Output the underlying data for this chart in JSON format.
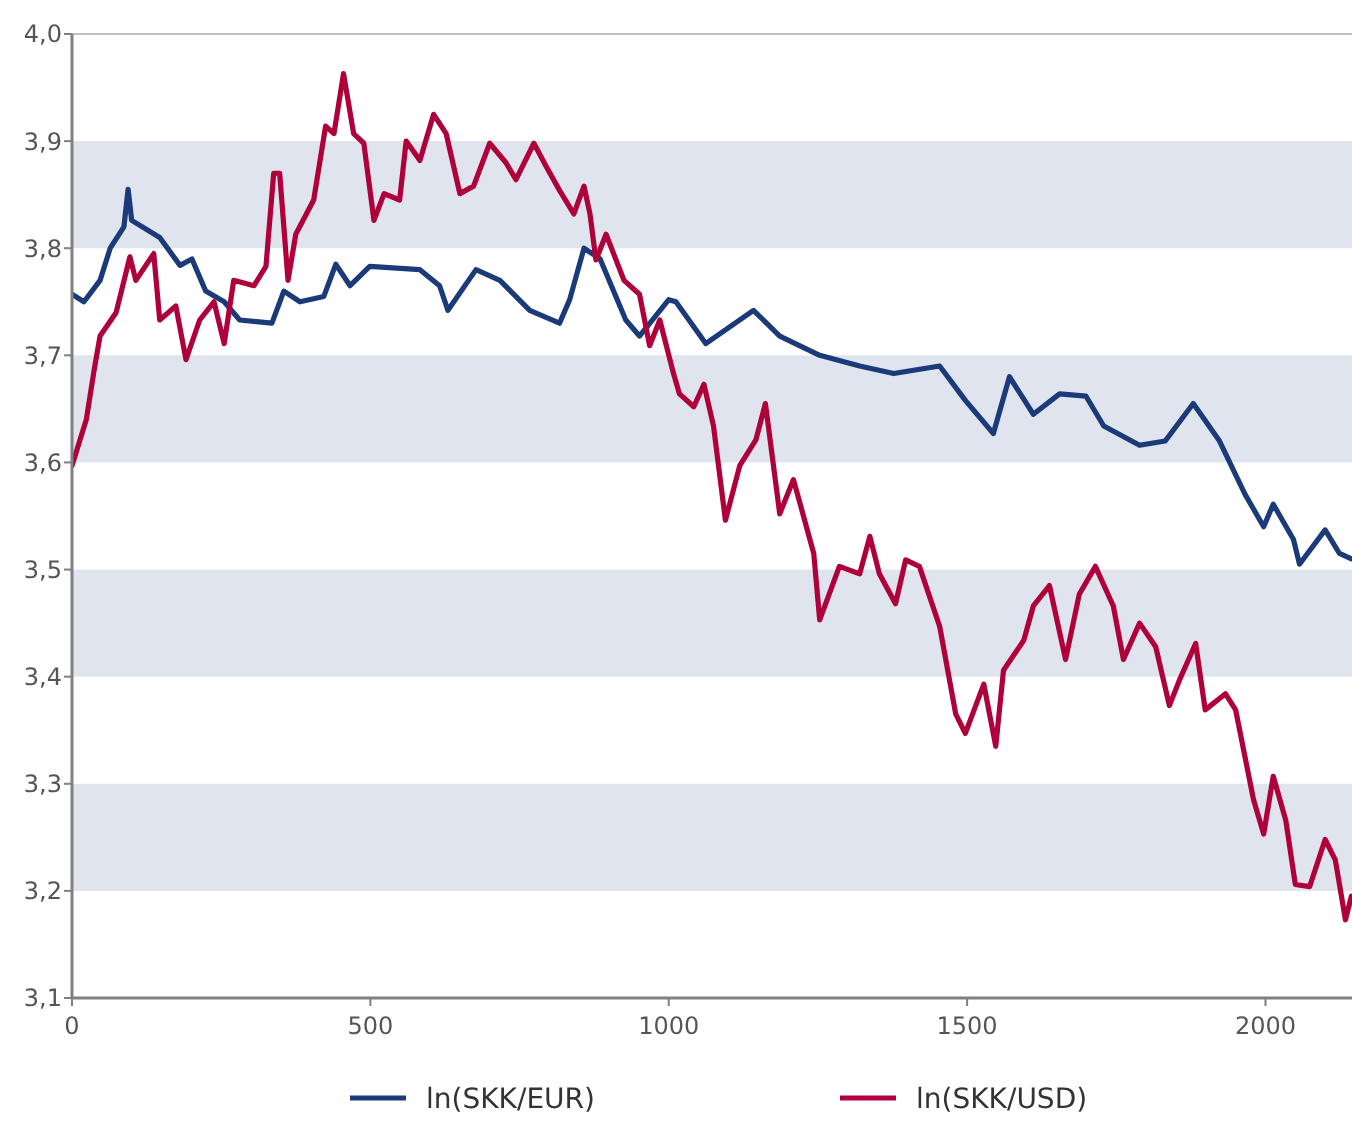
{
  "chart_data": {
    "type": "line",
    "xlim": [
      0,
      2145
    ],
    "ylim": [
      3.1,
      4.0
    ],
    "xticks": [
      0,
      500,
      1000,
      1500,
      2000
    ],
    "yticks": [
      {
        "value": 3.1,
        "label": "3,1"
      },
      {
        "value": 3.2,
        "label": "3,2"
      },
      {
        "value": 3.3,
        "label": "3,3"
      },
      {
        "value": 3.4,
        "label": "3,4"
      },
      {
        "value": 3.5,
        "label": "3,5"
      },
      {
        "value": 3.6,
        "label": "3,6"
      },
      {
        "value": 3.7,
        "label": "3,7"
      },
      {
        "value": 3.8,
        "label": "3,8"
      },
      {
        "value": 3.9,
        "label": "3,9"
      },
      {
        "value": 4.0,
        "label": "4,0"
      }
    ],
    "bands": [
      {
        "axis": "y",
        "from": 3.2,
        "to": 3.3,
        "color": "#dfe4ee"
      },
      {
        "axis": "y",
        "from": 3.4,
        "to": 3.5,
        "color": "#dfe4ee"
      },
      {
        "axis": "y",
        "from": 3.6,
        "to": 3.7,
        "color": "#dfe4ee"
      },
      {
        "axis": "y",
        "from": 3.8,
        "to": 3.9,
        "color": "#dfe4ee"
      }
    ],
    "legend": "bottom",
    "marker": "none",
    "line_style": "solid",
    "series": [
      {
        "name": "ln(SKK/EUR)",
        "color": "#1a3a7a",
        "x": [
          0,
          20,
          47,
          64,
          87,
          94,
          100,
          147,
          181,
          201,
          224,
          255,
          281,
          335,
          355,
          382,
          422,
          442,
          466,
          499,
          583,
          616,
          630,
          677,
          717,
          767,
          817,
          834,
          858,
          885,
          928,
          951,
          1000,
          1012,
          1062,
          1142,
          1186,
          1253,
          1320,
          1377,
          1454,
          1497,
          1544,
          1571,
          1611,
          1655,
          1699,
          1729,
          1789,
          1832,
          1879,
          1923,
          1966,
          1997,
          2013,
          2047,
          2057,
          2100,
          2124,
          2144
        ],
        "values": [
          3.757,
          3.75,
          3.77,
          3.8,
          3.82,
          3.855,
          3.826,
          3.81,
          3.784,
          3.79,
          3.76,
          3.75,
          3.733,
          3.73,
          3.76,
          3.75,
          3.755,
          3.785,
          3.765,
          3.783,
          3.78,
          3.765,
          3.742,
          3.78,
          3.77,
          3.742,
          3.73,
          3.752,
          3.8,
          3.79,
          3.733,
          3.718,
          3.752,
          3.75,
          3.711,
          3.742,
          3.718,
          3.7,
          3.69,
          3.683,
          3.69,
          3.658,
          3.627,
          3.68,
          3.645,
          3.664,
          3.662,
          3.634,
          3.616,
          3.62,
          3.655,
          3.62,
          3.57,
          3.54,
          3.561,
          3.528,
          3.505,
          3.537,
          3.515,
          3.51
        ]
      },
      {
        "name": "ln(SKK/USD)",
        "color": "#b0003a",
        "x": [
          0,
          24,
          37,
          47,
          74,
          97,
          107,
          137,
          147,
          174,
          191,
          214,
          238,
          255,
          271,
          305,
          325,
          338,
          348,
          362,
          375,
          405,
          425,
          439,
          455,
          472,
          489,
          506,
          523,
          549,
          560,
          583,
          606,
          627,
          650,
          673,
          700,
          727,
          744,
          774,
          794,
          817,
          841,
          858,
          868,
          878,
          895,
          925,
          951,
          968,
          985,
          1008,
          1018,
          1042,
          1059,
          1075,
          1095,
          1119,
          1146,
          1162,
          1186,
          1209,
          1243,
          1253,
          1286,
          1320,
          1337,
          1353,
          1380,
          1397,
          1420,
          1454,
          1481,
          1497,
          1528,
          1548,
          1561,
          1595,
          1611,
          1638,
          1665,
          1688,
          1715,
          1745,
          1762,
          1789,
          1816,
          1839,
          1856,
          1883,
          1899,
          1933,
          1950,
          1980,
          1997,
          2013,
          2034,
          2050,
          2074,
          2100,
          2117,
          2134,
          2144
        ],
        "values": [
          3.597,
          3.64,
          3.686,
          3.718,
          3.74,
          3.792,
          3.77,
          3.795,
          3.733,
          3.746,
          3.696,
          3.733,
          3.75,
          3.711,
          3.77,
          3.765,
          3.783,
          3.87,
          3.87,
          3.77,
          3.813,
          3.845,
          3.914,
          3.907,
          3.963,
          3.907,
          3.898,
          3.826,
          3.851,
          3.845,
          3.9,
          3.882,
          3.925,
          3.907,
          3.851,
          3.858,
          3.898,
          3.88,
          3.864,
          3.898,
          3.877,
          3.854,
          3.832,
          3.858,
          3.832,
          3.789,
          3.813,
          3.77,
          3.757,
          3.709,
          3.733,
          3.683,
          3.664,
          3.652,
          3.673,
          3.634,
          3.546,
          3.597,
          3.621,
          3.655,
          3.552,
          3.584,
          3.515,
          3.453,
          3.503,
          3.496,
          3.531,
          3.496,
          3.468,
          3.509,
          3.503,
          3.447,
          3.365,
          3.347,
          3.393,
          3.335,
          3.406,
          3.434,
          3.466,
          3.485,
          3.416,
          3.477,
          3.503,
          3.466,
          3.416,
          3.45,
          3.428,
          3.373,
          3.397,
          3.431,
          3.369,
          3.384,
          3.369,
          3.285,
          3.253,
          3.307,
          3.266,
          3.206,
          3.204,
          3.248,
          3.229,
          3.173,
          3.195
        ]
      }
    ]
  }
}
